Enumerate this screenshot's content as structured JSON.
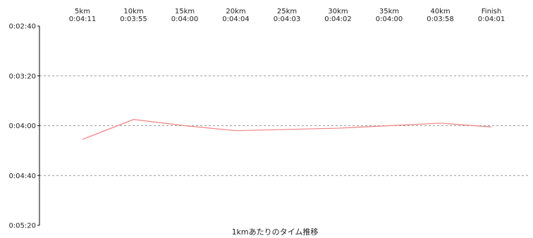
{
  "chart_data": {
    "type": "line",
    "caption": "1kmあたりのタイム推移",
    "categories": [
      "5km",
      "10km",
      "15km",
      "20km",
      "25km",
      "30km",
      "35km",
      "40km",
      "Finish"
    ],
    "split_labels": [
      "0:04:11",
      "0:03:55",
      "0:04:00",
      "0:04:04",
      "0:04:03",
      "0:04:02",
      "0:04:00",
      "0:03:58",
      "0:04:01"
    ],
    "y_tick_labels": [
      "0:02:40",
      "0:03:20",
      "0:04:00",
      "0:04:40",
      "0:05:20"
    ],
    "y_ticks_seconds": [
      160,
      200,
      240,
      280,
      320
    ],
    "values_seconds": [
      251,
      235,
      240,
      244,
      243,
      242,
      240,
      238,
      241
    ],
    "ylim_seconds": [
      160,
      320
    ],
    "y_axis_inverted": true,
    "grid": "horizontal-dashed",
    "colors": {
      "line": "#f08080",
      "grid": "#999999",
      "axis": "#000000"
    }
  }
}
